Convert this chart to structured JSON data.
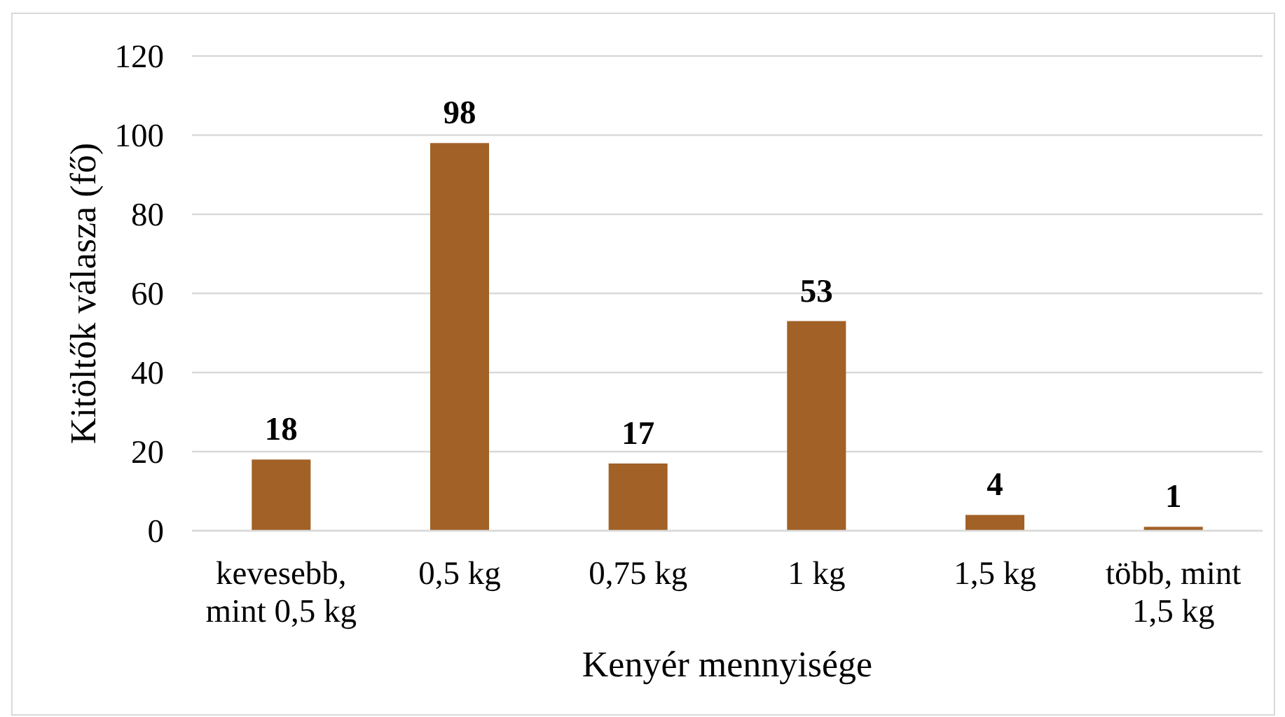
{
  "chart_data": {
    "type": "bar",
    "categories": [
      "kevesebb, mint 0,5 kg",
      "0,5 kg",
      "0,75 kg",
      "1 kg",
      "1,5 kg",
      "több, mint 1,5 kg"
    ],
    "values": [
      18,
      98,
      17,
      53,
      4,
      1
    ],
    "color": "#a16127",
    "xlabel": "Kenyér mennyisége",
    "ylabel": "Kitöltők válasza (fő)",
    "ylim": [
      0,
      120
    ],
    "yticks": [
      0,
      20,
      40,
      60,
      80,
      100,
      120
    ],
    "grid": "y",
    "data_labels": true
  }
}
